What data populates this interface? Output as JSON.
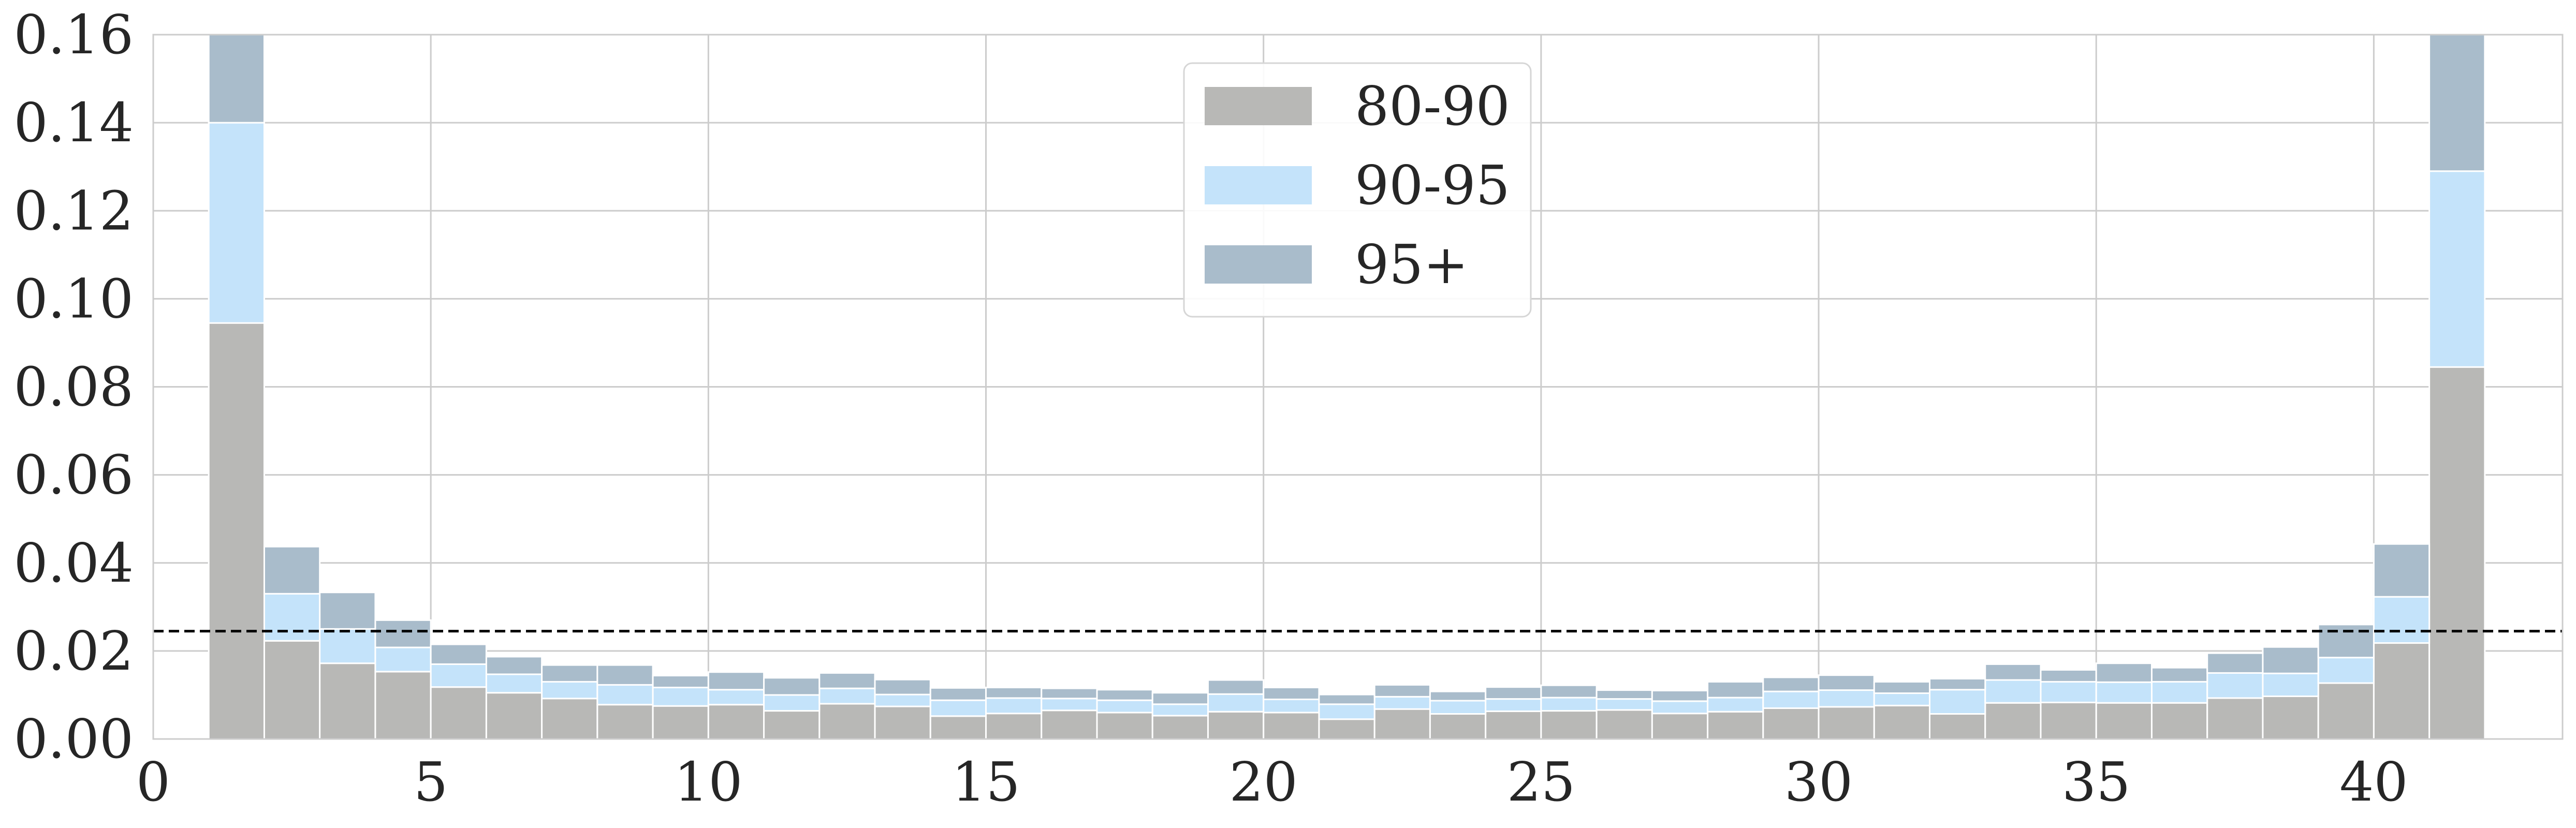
{
  "chart_data": {
    "type": "bar",
    "stacked": true,
    "bin_edges": [
      1,
      2,
      3,
      4,
      5,
      6,
      7,
      8,
      9,
      10,
      11,
      12,
      13,
      14,
      15,
      16,
      17,
      18,
      19,
      20,
      21,
      22,
      23,
      24,
      25,
      26,
      27,
      28,
      29,
      30,
      31,
      32,
      33,
      34,
      35,
      36,
      37,
      38,
      39,
      40,
      41
    ],
    "series": [
      {
        "name": "80-90",
        "color": "#b8b8b6",
        "values": [
          0.0945,
          0.0223,
          0.0172,
          0.0153,
          0.0118,
          0.0105,
          0.0092,
          0.0078,
          0.0075,
          0.0078,
          0.0064,
          0.008,
          0.0074,
          0.0052,
          0.0058,
          0.0065,
          0.006,
          0.0053,
          0.0062,
          0.006,
          0.0045,
          0.0068,
          0.0057,
          0.0063,
          0.0064,
          0.0066,
          0.0058,
          0.0062,
          0.007,
          0.0073,
          0.0076,
          0.0057,
          0.0082,
          0.0083,
          0.0082,
          0.0082,
          0.0093,
          0.0097,
          0.0127,
          0.0218,
          0.0845
        ]
      },
      {
        "name": "90-95",
        "color": "#c4e3fa",
        "values": [
          0.0455,
          0.0107,
          0.0078,
          0.0055,
          0.0052,
          0.0042,
          0.0038,
          0.0045,
          0.0042,
          0.0034,
          0.0036,
          0.0035,
          0.0027,
          0.0036,
          0.0035,
          0.0027,
          0.0028,
          0.0026,
          0.004,
          0.003,
          0.0034,
          0.0028,
          0.003,
          0.0028,
          0.003,
          0.0025,
          0.0028,
          0.0032,
          0.0038,
          0.0038,
          0.0028,
          0.0055,
          0.0052,
          0.0047,
          0.0047,
          0.0048,
          0.0057,
          0.0052,
          0.0058,
          0.0105,
          0.0445
        ]
      },
      {
        "name": "95+",
        "color": "#a9bccb",
        "values": [
          0.02,
          0.0107,
          0.0083,
          0.0062,
          0.0045,
          0.004,
          0.0038,
          0.0045,
          0.0027,
          0.004,
          0.0039,
          0.0035,
          0.0034,
          0.0028,
          0.0024,
          0.0023,
          0.0024,
          0.0026,
          0.0032,
          0.0027,
          0.0022,
          0.0027,
          0.0021,
          0.0027,
          0.0028,
          0.002,
          0.0024,
          0.0036,
          0.0032,
          0.0034,
          0.0026,
          0.0025,
          0.0036,
          0.0027,
          0.0043,
          0.0032,
          0.0045,
          0.006,
          0.0075,
          0.012,
          0.031
        ]
      }
    ],
    "hline": {
      "y": 0.0245,
      "style": "dashed",
      "color": "#000000"
    },
    "xlim": [
      0,
      43.4
    ],
    "ylim": [
      0,
      0.16
    ],
    "xticks": [
      "0",
      "5",
      "10",
      "15",
      "20",
      "25",
      "30",
      "35",
      "40"
    ],
    "xtick_values": [
      0,
      5,
      10,
      15,
      20,
      25,
      30,
      35,
      40
    ],
    "yticks": [
      "0.00",
      "0.02",
      "0.04",
      "0.06",
      "0.08",
      "0.10",
      "0.12",
      "0.14",
      "0.16"
    ],
    "ytick_values": [
      0,
      0.02,
      0.04,
      0.06,
      0.08,
      0.1,
      0.12,
      0.14,
      0.16
    ],
    "grid": true,
    "legend_position": "top-center",
    "title": "",
    "xlabel": "",
    "ylabel": ""
  }
}
